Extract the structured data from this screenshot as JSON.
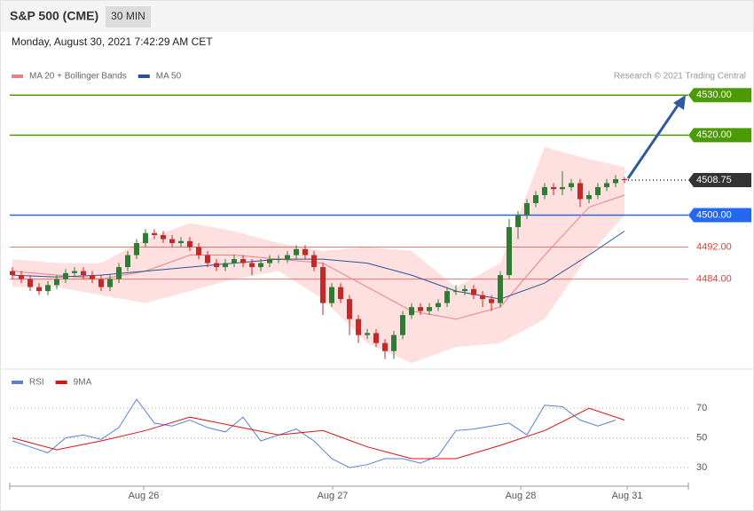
{
  "header": {
    "title": "S&P 500 (CME)",
    "timeframe": "30 MIN",
    "date": "Monday, August 30, 2021 7:42:29 AM CET"
  },
  "chart_data": [
    {
      "type": "candlestick",
      "note": "Research © 2021 Trading Central",
      "up_color": "#2e7d32",
      "down_color": "#c62828",
      "open": [
        4486,
        4485,
        4484,
        4482,
        4481,
        4482.5,
        4484,
        4485.5,
        4486,
        4485,
        4484,
        4482,
        4484,
        4487,
        4490,
        4493,
        4495.5,
        4495,
        4494,
        4493,
        4493.5,
        4492,
        4490,
        4488,
        4487,
        4488,
        4489,
        4488,
        4487,
        4488,
        4489,
        4489,
        4490,
        4491.5,
        4490,
        4487,
        4478,
        4482,
        4479,
        4474,
        4470,
        4470.5,
        4468,
        4466,
        4470,
        4475,
        4477,
        4476,
        4477,
        4478,
        4481,
        4481,
        4481.5,
        4480,
        4479,
        4478,
        4485,
        4497,
        4500,
        4503,
        4505,
        4507,
        4506.5,
        4507,
        4508,
        4504,
        4505,
        4507,
        4508,
        4509
      ],
      "high": [
        4487,
        4486,
        4485,
        4483,
        4483.5,
        4485,
        4486.5,
        4487,
        4487,
        4486,
        4485,
        4485,
        4488,
        4491,
        4494,
        4496.5,
        4496.5,
        4496,
        4495,
        4494.5,
        4494.5,
        4493,
        4491,
        4489,
        4489,
        4490,
        4490,
        4489,
        4489,
        4490,
        4490,
        4491,
        4492.5,
        4492.5,
        4491,
        4488,
        4483,
        4483,
        4480,
        4475,
        4471.5,
        4471.5,
        4469,
        4471,
        4476,
        4478,
        4478,
        4478,
        4479,
        4482,
        4482.5,
        4482.5,
        4482.5,
        4481,
        4480,
        4486,
        4499,
        4501,
        4504,
        4506,
        4508,
        4508,
        4511,
        4509,
        4509,
        4506,
        4508,
        4509,
        4510,
        4509.5
      ],
      "low": [
        4484,
        4483,
        4481,
        4480,
        4480,
        4481.5,
        4483,
        4484.5,
        4484,
        4483,
        4481,
        4481,
        4483,
        4486,
        4489,
        4492,
        4494,
        4493,
        4492,
        4492,
        4491,
        4489,
        4487,
        4486,
        4486,
        4487,
        4487,
        4485,
        4486,
        4487,
        4488,
        4488,
        4489,
        4489,
        4486,
        4475,
        4477,
        4478,
        4470,
        4468,
        4469,
        4467,
        4464,
        4464,
        4469,
        4474,
        4475,
        4475,
        4476,
        4477,
        4480,
        4480,
        4479,
        4477,
        4476,
        4477,
        4484,
        4494,
        4499,
        4502,
        4504,
        4505,
        4505,
        4506,
        4502,
        4503,
        4504,
        4506,
        4507,
        4508
      ],
      "close": [
        4485,
        4484,
        4482,
        4481,
        4482.5,
        4484,
        4485.5,
        4486,
        4485,
        4484,
        4482,
        4484,
        4487,
        4490,
        4493,
        4495.5,
        4495,
        4494,
        4493,
        4493.5,
        4492,
        4490,
        4488,
        4487,
        4488,
        4489,
        4488,
        4487,
        4488,
        4489,
        4489,
        4490,
        4491.5,
        4490,
        4487,
        4478,
        4482,
        4479,
        4474,
        4470,
        4470.5,
        4468,
        4466,
        4470,
        4475,
        4477,
        4476,
        4477,
        4478,
        4481,
        4481,
        4481.5,
        4480,
        4479,
        4478,
        4485,
        4497,
        4500,
        4503,
        4505,
        4507,
        4506.5,
        4507,
        4508,
        4504,
        4505,
        4507,
        4508,
        4509,
        4508.75
      ],
      "band": {
        "color": "#ffd6d6",
        "x": [
          0,
          5,
          10,
          15,
          20,
          25,
          30,
          35,
          40,
          45,
          50,
          55,
          60,
          65,
          69
        ],
        "upper": [
          4489,
          4488,
          4488,
          4494,
          4498,
          4496,
          4493,
          4491,
          4492,
          4491,
          4482,
          4488,
          4517,
          4514,
          4512
        ],
        "lower": [
          4482,
          4482,
          4480,
          4478,
          4481,
          4484,
          4486,
          4479,
          4468,
          4463,
          4467,
          4468,
          4474,
          4490,
          4500
        ]
      },
      "series": [
        {
          "name": "MA 20 + Bollinger Bands",
          "color": "#f08080",
          "x": [
            0,
            5,
            10,
            15,
            20,
            25,
            30,
            35,
            40,
            45,
            50,
            55,
            60,
            65,
            69
          ],
          "values": [
            4486,
            4485,
            4484,
            4486,
            4490,
            4490,
            4489,
            4488,
            4482,
            4476,
            4474,
            4477,
            4490,
            4502,
            4505
          ]
        },
        {
          "name": "MA 50",
          "color": "#2a5298",
          "x": [
            0,
            5,
            10,
            15,
            20,
            25,
            30,
            35,
            40,
            45,
            50,
            55,
            60,
            65,
            69
          ],
          "values": [
            4485,
            4484.5,
            4485,
            4486,
            4487,
            4488,
            4489,
            4489,
            4488,
            4485,
            4481,
            4479,
            4483,
            4490,
            4496
          ]
        }
      ],
      "levels": [
        {
          "value": 4530,
          "label": "4530.00",
          "color": "#4c9a06",
          "tag": true,
          "dotted": false
        },
        {
          "value": 4520,
          "label": "4520.00",
          "color": "#4c9a06",
          "tag": true,
          "dotted": false
        },
        {
          "value": 4508.75,
          "label": "4508.75",
          "color": "#333333",
          "tag": true,
          "dotted": true
        },
        {
          "value": 4500,
          "label": "4500.00",
          "color": "#2468f2",
          "tag": true,
          "dotted": false
        },
        {
          "value": 4492,
          "label": "4492.00",
          "color": "#e0403a",
          "tag": false,
          "dotted": false
        },
        {
          "value": 4484,
          "label": "4484.00",
          "color": "#e0403a",
          "tag": false,
          "dotted": false
        }
      ],
      "xlim": [
        -0.3,
        76.2
      ],
      "ylim": [
        4461.5,
        4532.5
      ]
    },
    {
      "type": "line",
      "series": [
        {
          "name": "RSI",
          "color": "#5a7fd6",
          "x": [
            0,
            2,
            4,
            6,
            8,
            10,
            12,
            14,
            16,
            18,
            20,
            22,
            24,
            26,
            28,
            30,
            32,
            34,
            36,
            38,
            40,
            42,
            44,
            46,
            48,
            50,
            52,
            54,
            56,
            58,
            60,
            62,
            64,
            66,
            68
          ],
          "values": [
            48,
            44,
            40,
            50,
            52,
            49,
            57,
            76,
            60,
            58,
            62,
            57,
            54,
            64,
            48,
            52,
            56,
            48,
            36,
            30,
            32,
            36,
            36,
            33,
            38,
            55,
            56,
            58,
            60,
            52,
            72,
            71,
            62,
            58,
            62
          ]
        },
        {
          "name": "9MA",
          "color": "#e01010",
          "x": [
            0,
            5,
            10,
            15,
            20,
            25,
            30,
            35,
            40,
            45,
            50,
            55,
            60,
            65,
            69
          ],
          "values": [
            50,
            42,
            48,
            55,
            64,
            58,
            52,
            55,
            44,
            36,
            36,
            45,
            55,
            70,
            62
          ]
        }
      ],
      "xlim": [
        -0.3,
        76.2
      ],
      "ylim": [
        17.5,
        94
      ],
      "yticks": [
        70,
        50,
        30
      ],
      "xticks": [
        {
          "value": 14.8,
          "label": "Aug 26"
        },
        {
          "value": 36.1,
          "label": "Aug 27"
        },
        {
          "value": 57.3,
          "label": "Aug 28"
        },
        {
          "value": 69.3,
          "label": "Aug 31"
        }
      ]
    }
  ]
}
